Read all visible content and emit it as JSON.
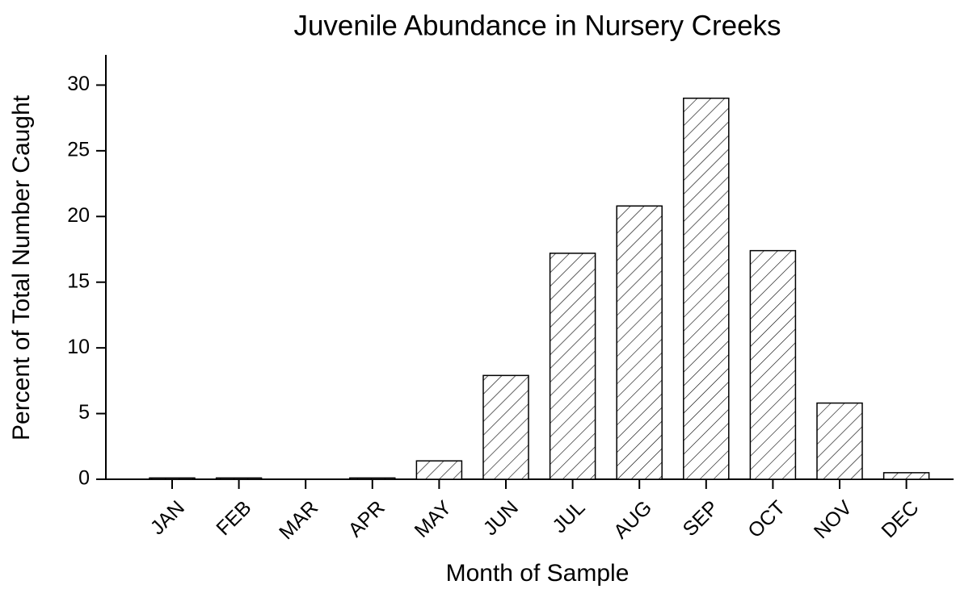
{
  "chart_data": {
    "type": "bar",
    "title": "Juvenile Abundance in Nursery Creeks",
    "x_label": "Month of Sample",
    "y_label": "Percent of Total Number Caught",
    "categories": [
      "JAN",
      "FEB",
      "MAR",
      "APR",
      "MAY",
      "JUN",
      "JUL",
      "AUG",
      "SEP",
      "OCT",
      "NOV",
      "DEC"
    ],
    "values": [
      0.1,
      0.1,
      0,
      0.1,
      1.4,
      7.9,
      17.2,
      20.8,
      29.0,
      17.4,
      5.8,
      0.5
    ],
    "color": "#ffffff",
    "hatch": true,
    "ylim": [
      0,
      32.3
    ],
    "yticks": [
      0,
      5,
      10,
      15,
      20,
      25,
      30
    ],
    "grid": false
  }
}
